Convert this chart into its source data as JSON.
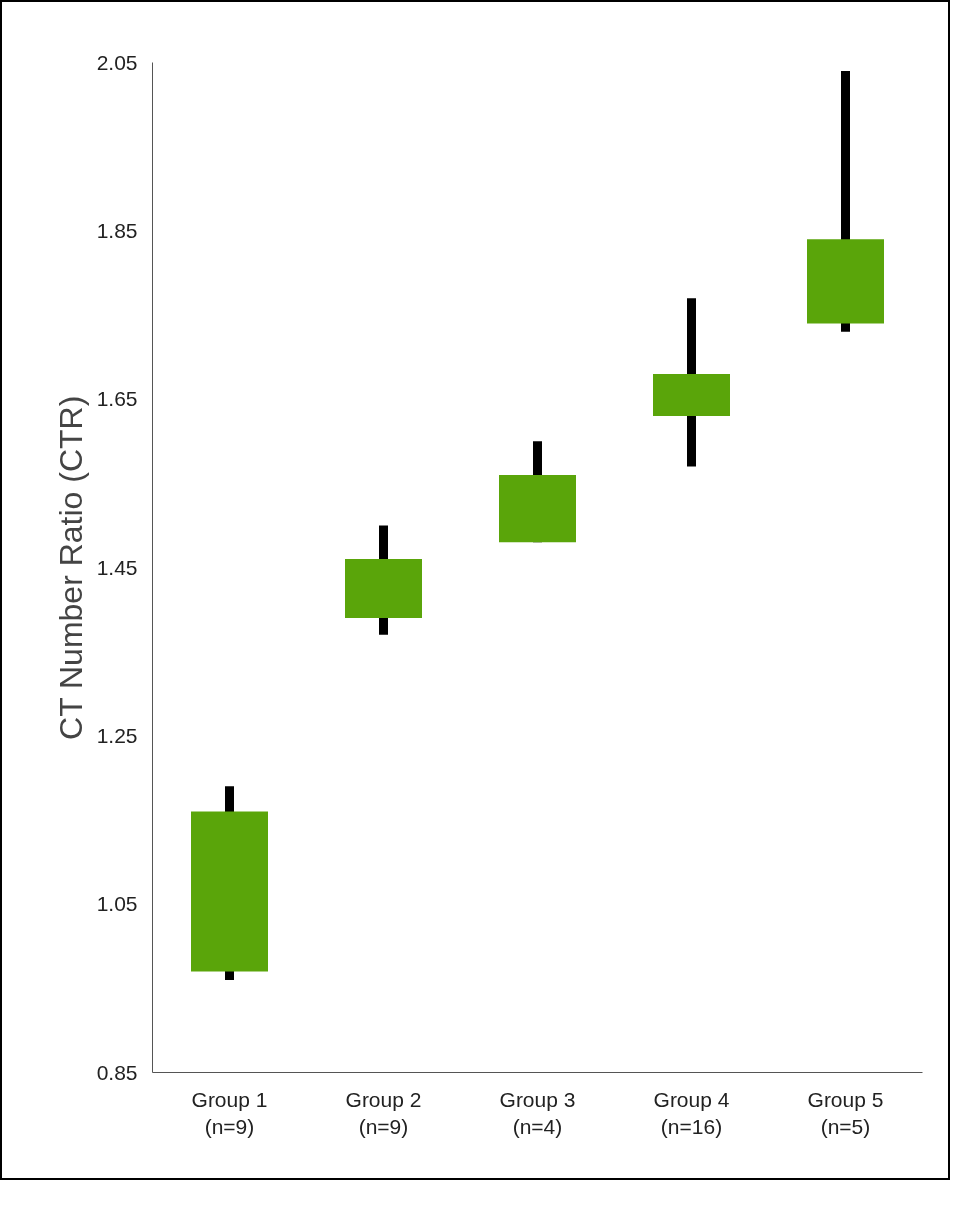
{
  "chart_data": {
    "type": "candlestick",
    "ylabel": "CT Number Ratio (CTR)",
    "categories": [
      "Group 1\n(n=9)",
      "Group 2\n(n=9)",
      "Group 3\n(n=4)",
      "Group 4\n(n=16)",
      "Group 5\n(n=5)"
    ],
    "ohlc": [
      [
        0.97,
        1.19,
        0.96,
        1.16
      ],
      [
        1.39,
        1.5,
        1.37,
        1.46
      ],
      [
        1.48,
        1.6,
        1.48,
        1.56
      ],
      [
        1.63,
        1.77,
        1.57,
        1.68
      ],
      [
        1.74,
        2.04,
        1.73,
        1.84
      ]
    ],
    "color": "#5aa50a",
    "ylim": [
      0.85,
      2.05
    ],
    "yticks": [
      0.85,
      1.05,
      1.25,
      1.45,
      1.65,
      1.85,
      2.05
    ],
    "grid": false
  }
}
